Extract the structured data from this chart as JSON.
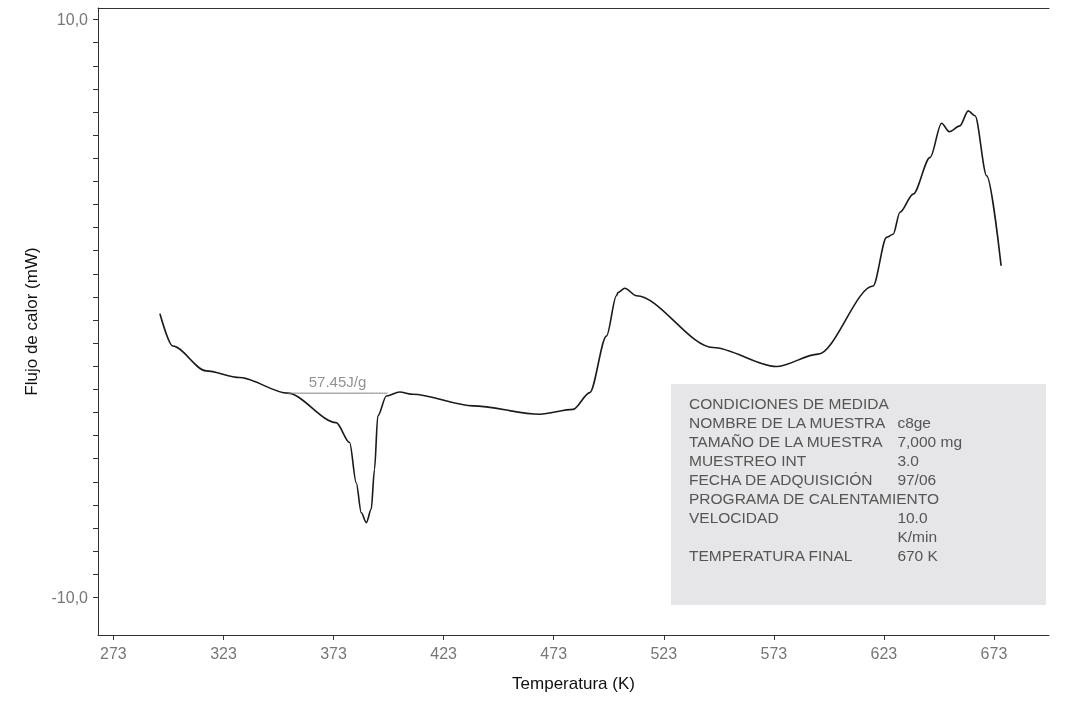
{
  "chart_data": {
    "type": "line",
    "xlabel": "Temperatura (K)",
    "ylabel": "Flujo de calor (mW)",
    "xlim": [
      266,
      698
    ],
    "xticks": [
      273,
      323,
      373,
      423,
      473,
      523,
      573,
      623,
      673
    ],
    "ylim": [
      -11.3,
      10.4
    ],
    "yticks": [
      {
        "value": -10,
        "label": "-10,0"
      },
      {
        "value": -9.2,
        "label": null
      },
      {
        "value": -8.4,
        "label": null
      },
      {
        "value": -7.6,
        "label": null
      },
      {
        "value": -6.8,
        "label": null
      },
      {
        "value": -6,
        "label": null
      },
      {
        "value": -5.2,
        "label": null
      },
      {
        "value": -4.4,
        "label": null
      },
      {
        "value": -3.6,
        "label": null
      },
      {
        "value": -2.8,
        "label": null
      },
      {
        "value": -2,
        "label": null
      },
      {
        "value": -1.2,
        "label": null
      },
      {
        "value": -0.4,
        "label": null
      },
      {
        "value": 0.4,
        "label": null
      },
      {
        "value": 1.2,
        "label": null
      },
      {
        "value": 2,
        "label": null
      },
      {
        "value": 2.8,
        "label": null
      },
      {
        "value": 3.6,
        "label": null
      },
      {
        "value": 4.4,
        "label": null
      },
      {
        "value": 5.2,
        "label": null
      },
      {
        "value": 6,
        "label": null
      },
      {
        "value": 6.8,
        "label": null
      },
      {
        "value": 7.6,
        "label": null
      },
      {
        "value": 8.4,
        "label": null
      },
      {
        "value": 9.2,
        "label": null
      },
      {
        "value": 10,
        "label": "10,0"
      }
    ],
    "grid": false,
    "marker": "none",
    "line_style": "solid",
    "series": [
      {
        "color": "#1a1a1a",
        "x": [
          294.2,
          300.0,
          315.1,
          330.3,
          352.2,
          374.2,
          380.3,
          383.3,
          385.6,
          387.9,
          390.1,
          391.6,
          393.1,
          397.0,
          403.0,
          409.0,
          436.3,
          466.6,
          481.8,
          489.4,
          497.0,
          501.5,
          502.2,
          505.3,
          510.6,
          545.4,
          574.2,
          593.1,
          618.1,
          624.2,
          627.2,
          630.3,
          636.3,
          644.0,
          649.2,
          652.7,
          657.5,
          661.3,
          664.4,
          669.7,
          676.2
        ],
        "values": [
          -0.2,
          -1.3,
          -2.16,
          -2.39,
          -2.93,
          -3.95,
          -4.64,
          -6.03,
          -7.07,
          -7.41,
          -6.95,
          -5.57,
          -3.72,
          -3.03,
          -2.89,
          -2.97,
          -3.37,
          -3.66,
          -3.49,
          -2.91,
          -0.95,
          0.44,
          0.55,
          0.7,
          0.44,
          -1.35,
          -2.01,
          -1.58,
          0.78,
          2.46,
          2.57,
          3.33,
          3.96,
          5.23,
          6.41,
          6.12,
          6.32,
          6.84,
          6.67,
          4.59,
          1.5
        ]
      },
      {
        "color": "#808080",
        "x": [
          352.2,
          397.5
        ],
        "values": [
          -2.93,
          -2.93
        ]
      }
    ],
    "annotations": [
      {
        "text": "57.45J/g",
        "x": 374.8,
        "y": -2.93
      },
      "CONDICIONES DE MEDIDA",
      "NOMBRE DE LA MUESTRA\tc8ge",
      "TAMAÑO DE LA MUESTRA\t7,000 mg",
      "MUESTREO INT\t3.0",
      "FECHA DE ADQUISICIÓN\t97/06",
      "PROGRAMA DE CALENTAMIENTO",
      "VELOCIDAD\t10.0\nK/min",
      "TEMPERATURA FINAL\t670 K"
    ]
  }
}
